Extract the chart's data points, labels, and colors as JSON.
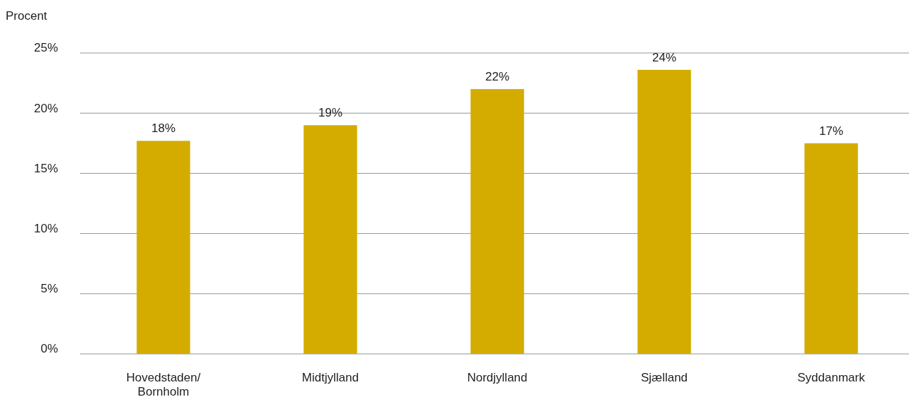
{
  "chart_data": {
    "type": "bar",
    "ylabel": "Procent",
    "categories": [
      "Hovedstaden/ Bornholm",
      "Midtjylland",
      "Nordjylland",
      "Sjælland",
      "Syddanmark"
    ],
    "values": [
      17.7,
      19.0,
      22.0,
      23.6,
      17.5
    ],
    "value_labels": [
      "18%",
      "19%",
      "22%",
      "24%",
      "17%"
    ],
    "color": "#d4ac00",
    "ylim": [
      0,
      25
    ],
    "yticks": [
      {
        "value": 0,
        "label": "0%"
      },
      {
        "value": 5,
        "label": "5%"
      },
      {
        "value": 10,
        "label": "10%"
      },
      {
        "value": 15,
        "label": "15%"
      },
      {
        "value": 20,
        "label": "20%"
      },
      {
        "value": 25,
        "label": "25%"
      }
    ],
    "grid": "y"
  }
}
